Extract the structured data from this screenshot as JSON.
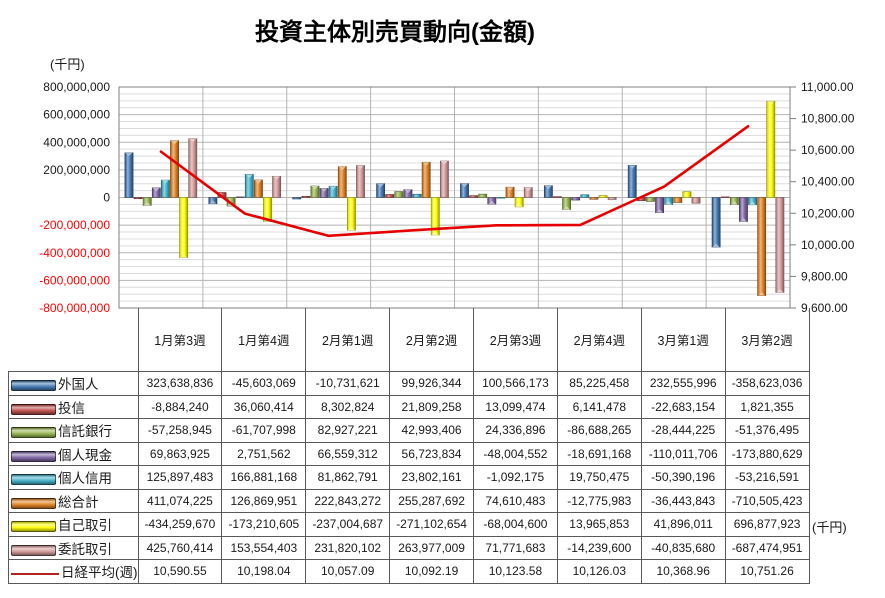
{
  "title": "投資主体別売買動向(金額)",
  "left_axis": {
    "unit": "(千円)",
    "min": -800000000,
    "max": 800000000,
    "major_step": 200000000,
    "minor_step": 50000000,
    "tick_labels": [
      "800,000,000",
      "600,000,000",
      "400,000,000",
      "200,000,000",
      "0",
      "-200,000,000",
      "-400,000,000",
      "-600,000,000",
      "-800,000,000"
    ],
    "label_color": "#1a1a1a",
    "negative_label_color": "#ff0000"
  },
  "right_axis": {
    "unit": "(千円)",
    "min": 9600,
    "max": 11000,
    "major_step": 200,
    "tick_labels": [
      "11,000.00",
      "10,800.00",
      "10,600.00",
      "10,400.00",
      "10,200.00",
      "10,000.00",
      "9,800.00",
      "9,600.00"
    ],
    "label_color": "#1a1a1a"
  },
  "chart_data": {
    "type": "bar",
    "subtype": "grouped bars with line overlay and data table legend",
    "grid": true,
    "legend_position": "table-left",
    "categories": [
      "1月第3週",
      "1月第4週",
      "2月第1週",
      "2月第2週",
      "2月第3週",
      "2月第4週",
      "3月第1週",
      "3月第2週"
    ],
    "bar_series": [
      {
        "name": "外国人",
        "color": "#3F74B0",
        "values": [
          323638836,
          -45603069,
          -10731621,
          99926344,
          100566173,
          85225458,
          232555996,
          -358623036
        ]
      },
      {
        "name": "投信",
        "color": "#BE4B48",
        "values": [
          -8884240,
          36060414,
          8302824,
          21809258,
          13099474,
          6141478,
          -22683154,
          1821355
        ]
      },
      {
        "name": "信託銀行",
        "color": "#94B44D",
        "values": [
          -57258945,
          -61707998,
          82927221,
          42993406,
          24336896,
          -86688265,
          -28444225,
          -51376495
        ]
      },
      {
        "name": "個人現金",
        "color": "#7C63A3",
        "values": [
          69863925,
          2751562,
          66559312,
          56723834,
          -48004552,
          -18691168,
          -110011706,
          -173880629
        ]
      },
      {
        "name": "個人信用",
        "color": "#3FB0C9",
        "values": [
          125897483,
          166881168,
          81862791,
          23802161,
          -1092175,
          19750475,
          -50390196,
          -53216591
        ]
      },
      {
        "name": "総合計",
        "color": "#E0801F",
        "values": [
          411074225,
          126869951,
          222843272,
          255287692,
          74610483,
          -12775983,
          -36443843,
          -710505423
        ]
      },
      {
        "name": "自己取引",
        "color": "#FFFF00",
        "values": [
          -434259670,
          -173210605,
          -237004687,
          -271102654,
          -68004600,
          13965853,
          41896011,
          696877923
        ]
      },
      {
        "name": "委託取引",
        "color": "#D39896",
        "values": [
          425760414,
          153554403,
          231820102,
          263977009,
          71771683,
          -14239600,
          -40835680,
          -687474951
        ]
      }
    ],
    "line_series": {
      "name": "日経平均(週)",
      "axis": "right",
      "color": "#E60000",
      "legend_swatch_color": "#B22222",
      "values": [
        10590.55,
        10198.04,
        10057.09,
        10092.19,
        10123.58,
        10126.03,
        10368.96,
        10751.26
      ]
    },
    "ylim_left": [
      -800000000,
      800000000
    ],
    "ylim_right": [
      9600,
      11000
    ]
  }
}
